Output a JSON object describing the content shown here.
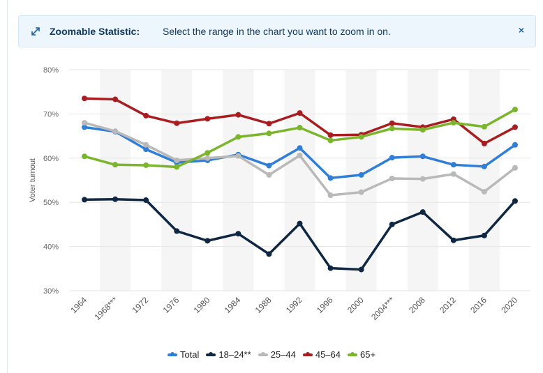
{
  "banner": {
    "title": "Zoomable Statistic:",
    "message": "Select the range in the chart you want to zoom in on.",
    "close_label": "×"
  },
  "chart_data": {
    "type": "line",
    "ylabel": "Voter turnout",
    "xlabel": "",
    "ylim": [
      30,
      80
    ],
    "yticks": [
      "30%",
      "40%",
      "50%",
      "60%",
      "70%",
      "80%"
    ],
    "grid": true,
    "legend_position": "bottom",
    "categories": [
      "1964",
      "1968***",
      "1972",
      "1976",
      "1980",
      "1984",
      "1988",
      "1992",
      "1996",
      "2000",
      "2004***",
      "2008",
      "2012",
      "2016",
      "2020"
    ],
    "series": [
      {
        "name": "Total",
        "color": "#2f7ed8",
        "values": [
          67.0,
          66.0,
          62.0,
          59.0,
          59.5,
          60.8,
          58.3,
          62.3,
          55.5,
          56.2,
          60.1,
          60.4,
          58.5,
          58.1,
          63.0
        ]
      },
      {
        "name": "18–24**",
        "color": "#0f2742",
        "values": [
          50.6,
          50.7,
          50.5,
          43.5,
          41.3,
          42.9,
          38.3,
          45.2,
          35.1,
          34.8,
          45.0,
          47.8,
          41.4,
          42.5,
          50.3
        ]
      },
      {
        "name": "25–44",
        "color": "#b9b9b9",
        "values": [
          68.0,
          66.1,
          63.0,
          59.5,
          60.0,
          60.5,
          56.2,
          60.6,
          51.6,
          52.3,
          55.4,
          55.3,
          56.4,
          52.4,
          57.8
        ]
      },
      {
        "name": "45–64",
        "color": "#a81d20",
        "values": [
          73.5,
          73.3,
          69.6,
          67.9,
          68.9,
          69.8,
          67.8,
          70.2,
          65.2,
          65.3,
          67.9,
          67.0,
          68.8,
          63.3,
          67.0
        ]
      },
      {
        "name": "65+",
        "color": "#7ab52c",
        "values": [
          60.4,
          58.5,
          58.4,
          58.0,
          61.2,
          64.8,
          65.6,
          66.9,
          64.0,
          64.8,
          66.7,
          66.4,
          68.0,
          67.1,
          71.0
        ]
      }
    ]
  }
}
